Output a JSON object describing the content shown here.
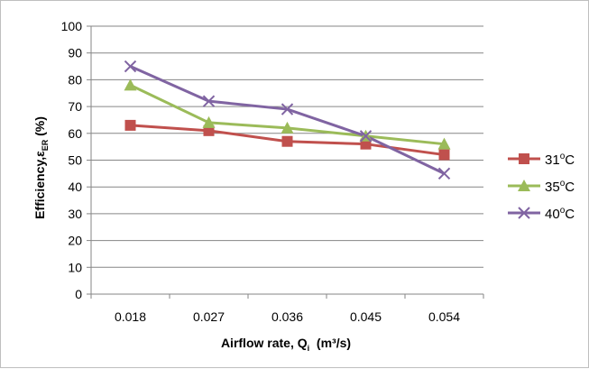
{
  "chart_data": {
    "type": "line",
    "categories": [
      "0.018",
      "0.027",
      "0.036",
      "0.045",
      "0.054"
    ],
    "ylim": [
      0,
      100
    ],
    "yticks": [
      0,
      10,
      20,
      30,
      40,
      50,
      60,
      70,
      80,
      90,
      100
    ],
    "grid": true,
    "legend_position": "right",
    "xlabel": {
      "main": "Airflow rate, Q",
      "sub": "i",
      "unit": "(m³/s)"
    },
    "ylabel": {
      "main": "Efficiency,ε",
      "sub": "ER",
      "unit": "(%)"
    },
    "series": [
      {
        "name": "31⁰C",
        "base": "31",
        "sup": "o",
        "unit": "C",
        "color": "#c0504d",
        "marker": "square",
        "values": [
          63,
          61,
          57,
          56,
          52
        ]
      },
      {
        "name": "35⁰C",
        "base": "35",
        "sup": "o",
        "unit": "C",
        "color": "#9bbb59",
        "marker": "triangle",
        "values": [
          78,
          64,
          62,
          59,
          56
        ]
      },
      {
        "name": "40⁰C",
        "base": "40",
        "sup": "o",
        "unit": "C",
        "color": "#8064a2",
        "marker": "x",
        "values": [
          85,
          72,
          69,
          59,
          45
        ]
      }
    ]
  }
}
